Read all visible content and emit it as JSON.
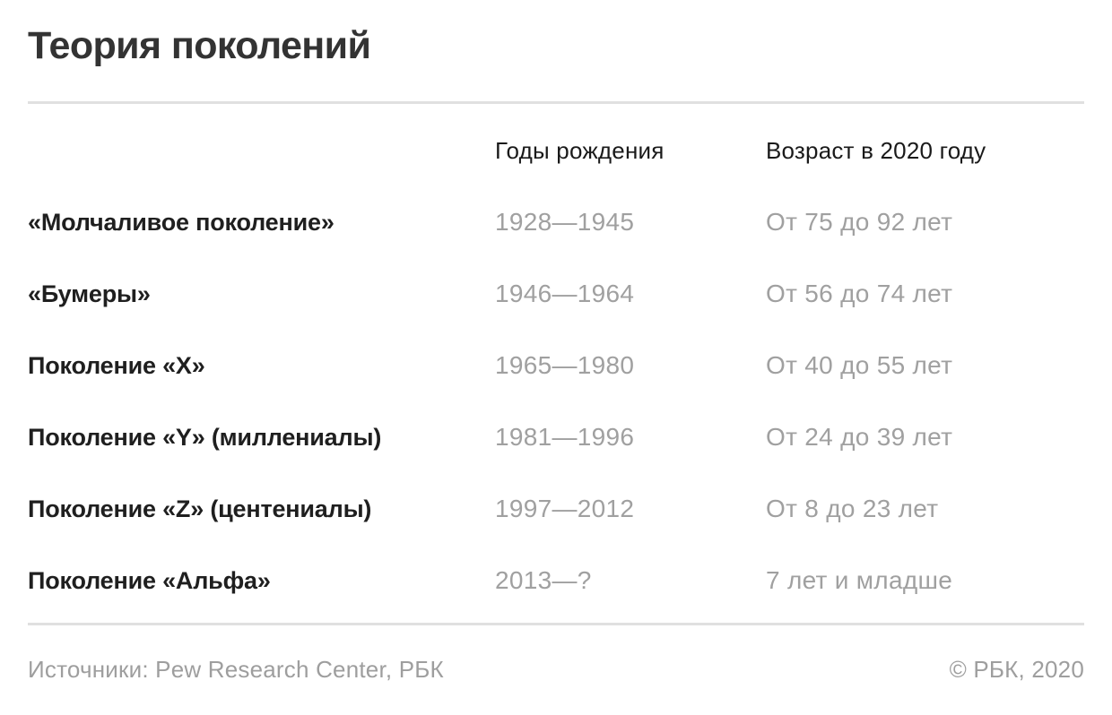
{
  "chart_data": {
    "type": "table",
    "title": "Теория поколений",
    "columns": [
      "Годы рождения",
      "Возраст в 2020 году"
    ],
    "rows": [
      {
        "label": "«Молчаливое поколение»",
        "years": "1928—1945",
        "age": "От 75 до 92 лет"
      },
      {
        "label": "«Бумеры»",
        "years": "1946—1964",
        "age": "От 56 до 74 лет"
      },
      {
        "label": "Поколение «X»",
        "years": "1965—1980",
        "age": "От 40 до 55 лет"
      },
      {
        "label": "Поколение «Y» (миллениалы)",
        "years": "1981—1996",
        "age": "От 24 до 39 лет"
      },
      {
        "label": "Поколение «Z» (центениалы)",
        "years": "1997—2012",
        "age": "От 8 до 23 лет"
      },
      {
        "label": "Поколение «Альфа»",
        "years": "2013—?",
        "age": "7 лет и младше"
      }
    ]
  },
  "footer": {
    "sources": "Источники: Pew Research Center, РБК",
    "copyright": "© РБК, 2020"
  },
  "colors": {
    "background": "#ffffff",
    "title": "#333333",
    "header_text": "#1a1a1a",
    "row_label": "#1f1f1f",
    "value_text": "#a0a0a0",
    "divider": "#e0e0e0",
    "footer_text": "#9e9e9e"
  }
}
